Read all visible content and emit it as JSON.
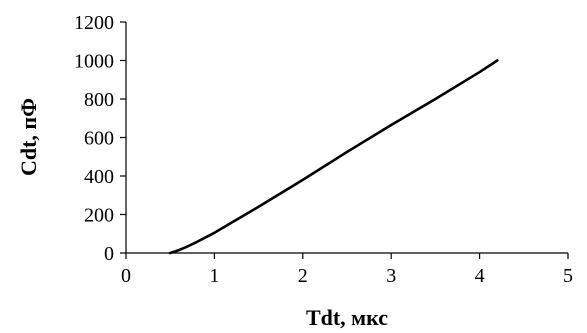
{
  "chart_data": {
    "type": "line",
    "title": "",
    "xlabel": "Tdt, мкс",
    "ylabel": "Cdt, пФ",
    "xlim": [
      0,
      5
    ],
    "ylim": [
      0,
      1200
    ],
    "xticks": [
      "0",
      "1",
      "2",
      "3",
      "4",
      "5"
    ],
    "yticks": [
      "0",
      "200",
      "400",
      "600",
      "800",
      "1000",
      "1200"
    ],
    "grid": false,
    "series": [
      {
        "x": [
          0.5,
          0.6,
          0.7,
          0.8,
          1.0,
          1.5,
          2.0,
          2.5,
          3.0,
          3.5,
          4.0,
          4.2
        ],
        "y": [
          0,
          15,
          35,
          57,
          105,
          240,
          380,
          525,
          665,
          800,
          940,
          1000
        ]
      }
    ]
  }
}
